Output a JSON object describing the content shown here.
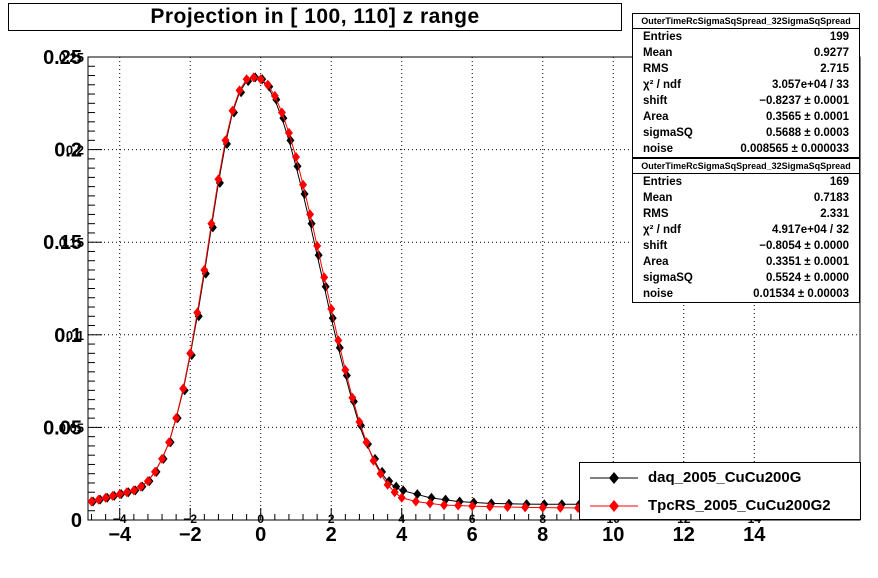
{
  "title": "Projection in [ 100, 110] z range",
  "stats_boxes": [
    {
      "name": "OuterTimeRcSigmaSqSpread_32SigmaSqSpread",
      "rows": [
        {
          "label": "Entries",
          "value": "199"
        },
        {
          "label": "Mean",
          "value": "0.9277"
        },
        {
          "label": "RMS",
          "value": "2.715"
        },
        {
          "label": "χ² / ndf",
          "value": "3.057e+04 / 33"
        },
        {
          "label": "shift",
          "value": "−0.8237 ± 0.0001"
        },
        {
          "label": "Area",
          "value": "0.3565 ± 0.0001"
        },
        {
          "label": "sigmaSQ",
          "value": "0.5688 ± 0.0003"
        },
        {
          "label": "noise",
          "value": "0.008565 ± 0.000033"
        }
      ]
    },
    {
      "name": "OuterTimeRcSigmaSqSpread_32SigmaSqSpread",
      "rows": [
        {
          "label": "Entries",
          "value": "169"
        },
        {
          "label": "Mean",
          "value": "0.7183"
        },
        {
          "label": "RMS",
          "value": "2.331"
        },
        {
          "label": "χ² / ndf",
          "value": "4.917e+04 / 32"
        },
        {
          "label": "shift",
          "value": "−0.8054 ± 0.0000"
        },
        {
          "label": "Area",
          "value": "0.3351 ± 0.0001"
        },
        {
          "label": "sigmaSQ",
          "value": "0.5524 ± 0.0000"
        },
        {
          "label": "noise",
          "value": "0.01534 ± 0.00003"
        }
      ]
    }
  ],
  "legend": [
    {
      "label": "daq_2005_CuCu200G",
      "color": "#000000"
    },
    {
      "label": "TpcRS_2005_CuCu200G2",
      "color": "#ff0000"
    }
  ],
  "chart_data": {
    "type": "scatter",
    "title": "Projection in [ 100, 110] z range",
    "xlabel": "",
    "ylabel": "",
    "xlim": [
      -4.9,
      17.0
    ],
    "ylim": [
      0,
      0.25
    ],
    "grid": true,
    "x_ticks_major": [
      "−4",
      "−2",
      "0",
      "2",
      "4",
      "6",
      "8",
      "10",
      "12",
      "14"
    ],
    "x_ticks_major_values": [
      -4,
      -2,
      0,
      2,
      4,
      6,
      8,
      10,
      12,
      14
    ],
    "x_ticks_overlay": [
      "−4",
      "−2",
      "0",
      "2",
      "4",
      "6",
      "8",
      "10",
      "12",
      "14"
    ],
    "y_ticks_major": [
      "0",
      "0.05",
      "0.1",
      "0.15",
      "0.2",
      "0.25"
    ],
    "y_ticks_major_values": [
      0,
      0.05,
      0.1,
      0.15,
      0.2,
      0.25
    ],
    "y_ticks_overlay": [
      "0.05",
      "0.1",
      "0.15",
      "0.2",
      "0.25"
    ],
    "series": [
      {
        "name": "daq_2005_CuCu200G",
        "color": "#000000",
        "marker": "diamond",
        "x": [
          -4.8,
          -4.6,
          -4.4,
          -4.2,
          -4.0,
          -3.8,
          -3.6,
          -3.4,
          -3.2,
          -3.0,
          -2.8,
          -2.6,
          -2.4,
          -2.2,
          -2.0,
          -1.8,
          -1.6,
          -1.4,
          -1.2,
          -1.0,
          -0.8,
          -0.6,
          -0.4,
          -0.2,
          0.0,
          0.2,
          0.4,
          0.6,
          0.8,
          1.0,
          1.2,
          1.4,
          1.6,
          1.8,
          2.0,
          2.2,
          2.4,
          2.6,
          2.8,
          3.0,
          3.2,
          3.4,
          3.6,
          3.8,
          4.0,
          4.4,
          4.8,
          5.2,
          5.6,
          6.0,
          6.5,
          7.0,
          7.5,
          8.0,
          8.5,
          9.0,
          9.5,
          10.0
        ],
        "y": [
          0.01,
          0.011,
          0.012,
          0.013,
          0.014,
          0.015,
          0.016,
          0.018,
          0.021,
          0.026,
          0.033,
          0.042,
          0.055,
          0.07,
          0.089,
          0.11,
          0.133,
          0.158,
          0.182,
          0.203,
          0.22,
          0.231,
          0.237,
          0.239,
          0.238,
          0.234,
          0.227,
          0.217,
          0.205,
          0.191,
          0.176,
          0.16,
          0.143,
          0.126,
          0.109,
          0.093,
          0.078,
          0.064,
          0.051,
          0.041,
          0.033,
          0.026,
          0.021,
          0.018,
          0.016,
          0.014,
          0.012,
          0.011,
          0.01,
          0.0095,
          0.009,
          0.0088,
          0.0086,
          0.0085,
          0.0085,
          0.0085,
          0.0085,
          0.0085
        ]
      },
      {
        "name": "TpcRS_2005_CuCu200G2",
        "color": "#ff0000",
        "marker": "diamond",
        "x": [
          -4.8,
          -4.6,
          -4.4,
          -4.2,
          -4.0,
          -3.8,
          -3.6,
          -3.4,
          -3.2,
          -3.0,
          -2.8,
          -2.6,
          -2.4,
          -2.2,
          -2.0,
          -1.8,
          -1.6,
          -1.4,
          -1.2,
          -1.0,
          -0.8,
          -0.6,
          -0.4,
          -0.2,
          0.0,
          0.2,
          0.4,
          0.6,
          0.8,
          1.0,
          1.2,
          1.4,
          1.6,
          1.8,
          2.0,
          2.2,
          2.4,
          2.6,
          2.8,
          3.0,
          3.2,
          3.4,
          3.6,
          3.8,
          4.0,
          4.4,
          4.8,
          5.2,
          5.6,
          6.0,
          6.5,
          7.0,
          7.5,
          8.0,
          8.5,
          9.0,
          9.5,
          10.0
        ],
        "y": [
          0.01,
          0.011,
          0.012,
          0.013,
          0.014,
          0.015,
          0.016,
          0.018,
          0.021,
          0.026,
          0.033,
          0.042,
          0.055,
          0.071,
          0.09,
          0.112,
          0.135,
          0.16,
          0.184,
          0.205,
          0.221,
          0.232,
          0.238,
          0.239,
          0.238,
          0.235,
          0.229,
          0.22,
          0.209,
          0.196,
          0.181,
          0.165,
          0.148,
          0.131,
          0.114,
          0.097,
          0.081,
          0.066,
          0.053,
          0.042,
          0.032,
          0.025,
          0.019,
          0.015,
          0.012,
          0.01,
          0.009,
          0.008,
          0.0078,
          0.0075,
          0.0072,
          0.007,
          0.0068,
          0.0067,
          0.0066,
          0.0065,
          0.0064,
          0.0063
        ]
      }
    ]
  }
}
